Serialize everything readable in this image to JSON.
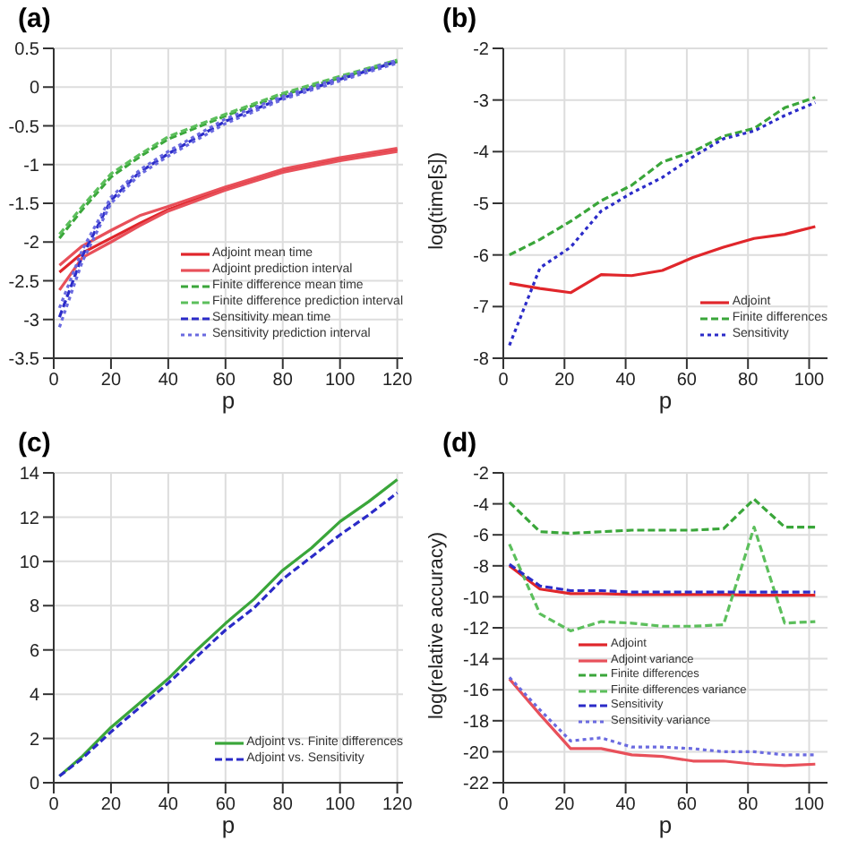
{
  "chart_data": [
    {
      "type": "line",
      "title": "(a)",
      "xlabel": "p",
      "x": [
        2,
        10,
        20,
        30,
        40,
        60,
        80,
        100,
        120
      ],
      "xlim": [
        0,
        122
      ],
      "xticks": [
        0,
        20,
        40,
        60,
        80,
        100,
        120
      ],
      "ylim": [
        -3.5,
        0.5
      ],
      "yticks": [
        -3.5,
        -3,
        -2.5,
        -2,
        -1.5,
        -1,
        -0.5,
        0,
        0.5
      ],
      "grid": true,
      "legend": "bottom right",
      "marker": "none",
      "series": [
        {
          "name": "Adjoint mean time",
          "color": "#e0262b",
          "line_style": "solid",
          "values": [
            -2.39,
            -2.14,
            -1.95,
            -1.76,
            -1.58,
            -1.31,
            -1.08,
            -0.93,
            -0.81
          ]
        },
        {
          "name": "Adjoint prediction interval",
          "color": "#e8505a",
          "line_style": "solid",
          "values": [
            -2.3,
            -2.05,
            -1.85,
            -1.66,
            -1.54,
            -1.29,
            -1.06,
            -0.91,
            -0.79
          ]
        },
        {
          "color": "#e8505a",
          "line_style": "solid",
          "values": [
            -2.62,
            -2.2,
            -2.0,
            -1.79,
            -1.6,
            -1.33,
            -1.1,
            -0.95,
            -0.83
          ]
        },
        {
          "name": "Finite difference mean time",
          "color": "#3aa63a",
          "line_style": "dashed",
          "values": [
            -1.95,
            -1.58,
            -1.16,
            -0.9,
            -0.67,
            -0.37,
            -0.1,
            0.12,
            0.33
          ]
        },
        {
          "name": "Finite difference prediction interval",
          "color": "#5cbf5c",
          "line_style": "dashed",
          "values": [
            -1.9,
            -1.54,
            -1.12,
            -0.87,
            -0.64,
            -0.35,
            -0.08,
            0.14,
            0.35
          ]
        },
        {
          "name": "Sensitivity mean time",
          "color": "#2b2bc8",
          "line_style": "dashed",
          "values": [
            -2.97,
            -2.18,
            -1.46,
            -1.1,
            -0.86,
            -0.44,
            -0.14,
            0.1,
            0.33
          ]
        },
        {
          "name": "Sensitivity prediction interval",
          "color": "#6a6ae0",
          "line_style": "dotted",
          "values": [
            -3.1,
            -2.25,
            -1.5,
            -1.13,
            -0.89,
            -0.47,
            -0.16,
            0.08,
            0.31
          ]
        },
        {
          "color": "#6a6ae0",
          "line_style": "dotted",
          "values": [
            -2.85,
            -2.1,
            -1.42,
            -1.07,
            -0.83,
            -0.41,
            -0.12,
            0.12,
            0.35
          ]
        }
      ]
    },
    {
      "type": "line",
      "title": "(b)",
      "xlabel": "p",
      "ylabel": "log(time[s])",
      "x": [
        2,
        12,
        22,
        32,
        42,
        52,
        62,
        72,
        82,
        92,
        102
      ],
      "xlim": [
        0,
        106
      ],
      "xticks": [
        0,
        20,
        40,
        60,
        80,
        100
      ],
      "ylim": [
        -8,
        -2
      ],
      "yticks": [
        -8,
        -7,
        -6,
        -5,
        -4,
        -3,
        -2
      ],
      "grid": true,
      "legend": "bottom right",
      "marker": "none",
      "series": [
        {
          "name": "Adjoint",
          "color": "#e0262b",
          "line_style": "solid",
          "values": [
            -6.55,
            -6.65,
            -6.73,
            -6.38,
            -6.4,
            -6.3,
            -6.05,
            -5.85,
            -5.68,
            -5.6,
            -5.45
          ]
        },
        {
          "name": "Finite differences",
          "color": "#3aa63a",
          "line_style": "dashed",
          "values": [
            -6.0,
            -5.7,
            -5.35,
            -4.95,
            -4.65,
            -4.2,
            -4.0,
            -3.7,
            -3.55,
            -3.15,
            -2.95
          ]
        },
        {
          "name": "Sensitivity",
          "color": "#2b2bc8",
          "line_style": "dotted",
          "values": [
            -7.75,
            -6.25,
            -5.85,
            -5.15,
            -4.8,
            -4.5,
            -4.1,
            -3.75,
            -3.6,
            -3.3,
            -3.05
          ]
        }
      ]
    },
    {
      "type": "line",
      "title": "(c)",
      "xlabel": "p",
      "x": [
        2,
        10,
        20,
        30,
        40,
        50,
        60,
        70,
        80,
        90,
        100,
        110,
        120
      ],
      "xlim": [
        0,
        122
      ],
      "xticks": [
        0,
        20,
        40,
        60,
        80,
        100,
        120
      ],
      "ylim": [
        0,
        14
      ],
      "yticks": [
        0,
        2,
        4,
        6,
        8,
        10,
        12,
        14
      ],
      "grid": true,
      "legend": "bottom right",
      "marker": "none",
      "series": [
        {
          "name": "Adjoint vs. Finite differences",
          "color": "#3aa63a",
          "line_style": "solid",
          "values": [
            0.3,
            1.2,
            2.5,
            3.6,
            4.7,
            6.0,
            7.2,
            8.3,
            9.6,
            10.6,
            11.8,
            12.7,
            13.7
          ]
        },
        {
          "name": "Adjoint vs. Sensitivity",
          "color": "#2b2bc8",
          "line_style": "dashed",
          "values": [
            0.3,
            1.1,
            2.3,
            3.4,
            4.5,
            5.7,
            6.9,
            7.9,
            9.2,
            10.2,
            11.2,
            12.1,
            13.1
          ]
        }
      ]
    },
    {
      "type": "line",
      "title": "(d)",
      "xlabel": "p",
      "ylabel": "log(relative accuracy)",
      "x": [
        2,
        12,
        22,
        32,
        42,
        52,
        62,
        72,
        82,
        92,
        102
      ],
      "xlim": [
        0,
        106
      ],
      "xticks": [
        0,
        20,
        40,
        60,
        80,
        100
      ],
      "ylim": [
        -22,
        -2
      ],
      "yticks": [
        -22,
        -20,
        -18,
        -16,
        -14,
        -12,
        -10,
        -8,
        -6,
        -4,
        -2
      ],
      "grid": true,
      "legend": "bottom",
      "marker": "none",
      "series": [
        {
          "name": "Adjoint",
          "color": "#e0262b",
          "line_style": "solid",
          "values": [
            -8.0,
            -9.5,
            -9.8,
            -9.8,
            -9.85,
            -9.85,
            -9.85,
            -9.85,
            -9.9,
            -9.9,
            -9.9
          ]
        },
        {
          "name": "Adjoint variance",
          "color": "#e8505a",
          "line_style": "solid",
          "values": [
            -15.3,
            -17.6,
            -19.8,
            -19.8,
            -20.2,
            -20.3,
            -20.6,
            -20.6,
            -20.8,
            -20.9,
            -20.8
          ]
        },
        {
          "name": "Finite differences",
          "color": "#3aa63a",
          "line_style": "dashed",
          "values": [
            -3.9,
            -5.8,
            -5.9,
            -5.8,
            -5.7,
            -5.7,
            -5.7,
            -5.6,
            -3.7,
            -5.5,
            -5.5
          ]
        },
        {
          "name": "Finite differences variance",
          "color": "#5cbf5c",
          "line_style": "dashed",
          "values": [
            -6.6,
            -11.1,
            -12.2,
            -11.6,
            -11.7,
            -11.9,
            -11.9,
            -11.8,
            -5.5,
            -11.7,
            -11.6
          ]
        },
        {
          "name": "Sensitivity",
          "color": "#2b2bc8",
          "line_style": "dashed",
          "values": [
            -7.9,
            -9.3,
            -9.6,
            -9.6,
            -9.7,
            -9.7,
            -9.7,
            -9.7,
            -9.7,
            -9.7,
            -9.7
          ]
        },
        {
          "name": "Sensitivity variance",
          "color": "#6a6ae0",
          "line_style": "dotted",
          "values": [
            -15.2,
            -17.3,
            -19.3,
            -19.1,
            -19.7,
            -19.7,
            -19.8,
            -20.0,
            -20.0,
            -20.2,
            -20.2
          ]
        }
      ]
    }
  ]
}
